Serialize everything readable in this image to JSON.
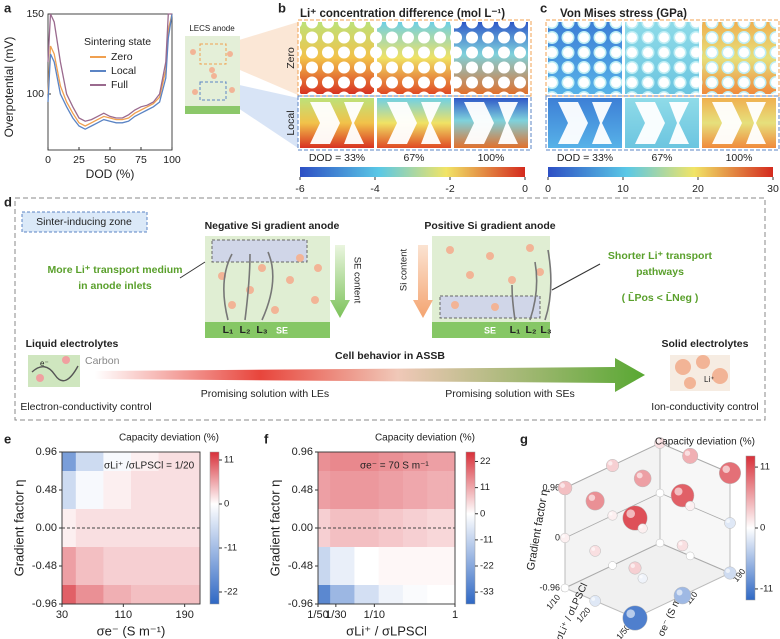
{
  "chart_data": [
    {
      "label": "a",
      "type": "line",
      "xlabel": "DOD (%)",
      "ylabel": "Overpotential (mV)",
      "legend_title": "Sintering state",
      "inset_label": "LECS anode",
      "x": [
        0,
        2,
        5,
        10,
        15,
        20,
        25,
        30,
        35,
        40,
        45,
        50,
        55,
        60,
        65,
        70,
        75,
        80,
        85,
        90,
        95,
        97,
        100
      ],
      "series": [
        {
          "name": "Zero",
          "color": "#f0a050",
          "values": [
            100,
            130,
            125,
            105,
            95,
            88,
            82,
            80,
            82,
            84,
            86,
            85,
            84,
            84,
            85,
            88,
            90,
            92,
            94,
            98,
            115,
            140,
            150
          ]
        },
        {
          "name": "Local",
          "color": "#5b84c4",
          "values": [
            95,
            125,
            120,
            100,
            92,
            85,
            80,
            78,
            80,
            82,
            84,
            83,
            82,
            82,
            83,
            86,
            88,
            90,
            92,
            95,
            110,
            135,
            150
          ]
        },
        {
          "name": "Full",
          "color": "#9a6a8e",
          "values": [
            120,
            150,
            145,
            120,
            100,
            92,
            85,
            83,
            84,
            86,
            88,
            86,
            85,
            85,
            87,
            90,
            92,
            93,
            95,
            100,
            120,
            150,
            150
          ]
        }
      ],
      "xlim": [
        0,
        100
      ],
      "xticks": [
        0,
        25,
        50,
        75,
        100
      ],
      "ylim": [
        65,
        150
      ],
      "yticks": [
        100,
        150
      ]
    },
    {
      "label": "e",
      "type": "heatmap",
      "colorbar_title": "Capacity deviation (%)",
      "annotation": "σLi⁺ /σLPSCl = 1/20",
      "xlabel": "σe⁻ (S m⁻¹)",
      "ylabel": "Gradient factor η",
      "x": [
        30,
        66,
        102,
        138,
        174,
        210
      ],
      "y": [
        0.96,
        0.48,
        0,
        -0.48,
        -0.96
      ],
      "values": [
        [
          -16,
          -6,
          -1,
          1,
          2,
          2
        ],
        [
          -6,
          -1,
          1,
          2,
          2,
          2
        ],
        [
          1,
          2,
          2,
          2,
          2,
          2
        ],
        [
          6,
          4,
          3,
          3,
          3,
          3
        ],
        [
          10,
          7,
          5,
          4,
          4,
          4
        ]
      ],
      "xlim": [
        30,
        210
      ],
      "xticks": [
        30,
        110,
        190
      ],
      "ylim": [
        -0.96,
        0.96
      ],
      "yticks": [
        0.96,
        0.48,
        {
          "value": 0,
          "label": "0.00"
        },
        -0.48,
        -0.96
      ],
      "reference_line": 0,
      "clim": [
        -25,
        13
      ],
      "cticks": [
        11,
        0,
        -11,
        -22
      ]
    },
    {
      "label": "f",
      "type": "heatmap",
      "xscale": "log",
      "colorbar_title": "Capacity deviation (%)",
      "annotation": "σe⁻ = 70 S m⁻¹",
      "xlabel": "σLi⁺ / σLPSCl",
      "ylabel": "Gradient factor η",
      "x": [
        0.02,
        0.04,
        0.08,
        0.16,
        0.32,
        0.64,
        1
      ],
      "y": [
        0.96,
        0.48,
        0,
        -0.48,
        -0.96
      ],
      "values": [
        [
          14,
          15,
          15,
          14,
          13,
          12,
          12
        ],
        [
          12,
          13,
          13,
          12,
          11,
          10,
          10
        ],
        [
          6,
          8,
          8,
          7,
          6,
          5,
          5
        ],
        [
          -10,
          -4,
          0,
          1,
          1,
          1,
          1
        ],
        [
          -30,
          -18,
          -8,
          -3,
          -1,
          0,
          0
        ]
      ],
      "xlim": [
        0.02,
        1
      ],
      "xticks": [
        {
          "value": 0.02,
          "label": "1/50"
        },
        {
          "value": 0.0333,
          "label": "1/30"
        },
        {
          "value": 0.1,
          "label": "1/10"
        },
        1
      ],
      "ylim": [
        -0.96,
        0.96
      ],
      "yticks": [
        0.96,
        0.48,
        {
          "value": 0,
          "label": "0.00"
        },
        -0.48,
        -0.96
      ],
      "reference_line": 0,
      "clim": [
        -38,
        26
      ],
      "cticks": [
        22,
        11,
        0,
        -11,
        -22,
        -33
      ]
    },
    {
      "label": "g",
      "type": "bubble3d",
      "colorbar_title": "Capacity deviation (%)",
      "ylabel": "Gradient factor η",
      "xlabel": "σLi⁺ / σLPSCl",
      "zlabel": "σe⁻ (S m⁻¹)",
      "eta": [
        0.96,
        0.96,
        0.96,
        0.96,
        0.96,
        0.96,
        0.96,
        0.96,
        0.96,
        0,
        0,
        0,
        0,
        0,
        0,
        0,
        0,
        0,
        -0.96,
        -0.96,
        -0.96,
        -0.96,
        -0.96,
        -0.96,
        -0.96,
        -0.96,
        -0.96
      ],
      "ratio": [
        0.1,
        0.1,
        0.1,
        0.05,
        0.05,
        0.05,
        0.02,
        0.02,
        0.02,
        0.1,
        0.1,
        0.1,
        0.05,
        0.05,
        0.05,
        0.02,
        0.02,
        0.02,
        0.1,
        0.1,
        0.1,
        0.05,
        0.05,
        0.05,
        0.02,
        0.02,
        0.02
      ],
      "sigma": [
        30,
        110,
        190,
        30,
        110,
        190,
        30,
        110,
        190,
        30,
        110,
        190,
        30,
        110,
        190,
        30,
        110,
        190,
        30,
        110,
        190,
        30,
        110,
        190,
        30,
        110,
        190
      ],
      "values": [
        4,
        3,
        2,
        7,
        6,
        5,
        11,
        10,
        9,
        1,
        1,
        0,
        2,
        1,
        1,
        3,
        2,
        -2,
        0,
        0,
        0,
        -2,
        -1,
        0,
        -11,
        -6,
        -3
      ],
      "ylim": [
        -0.96,
        0.96
      ],
      "yticks": [
        0.96,
        0,
        -0.96
      ],
      "xscale": "log",
      "xlim": [
        0.1,
        0.02
      ],
      "xticks": [
        {
          "value": 0.1,
          "label": "1/10"
        },
        {
          "value": 0.05,
          "label": "1/20"
        },
        {
          "value": 0.02,
          "label": "1/50"
        }
      ],
      "zlim": [
        30,
        190
      ],
      "zticks": [
        30,
        110,
        190
      ],
      "clim": [
        -13,
        13
      ],
      "cticks": [
        11,
        0,
        -11
      ]
    }
  ],
  "figure": {
    "b": {
      "label": "b",
      "title": "Li⁺ concentration difference (mol L⁻¹)",
      "rows": [
        "Zero",
        "Local"
      ],
      "columns": [
        "DOD = 33%",
        "67%",
        "100%"
      ],
      "colorbar": {
        "lim": [
          -6,
          0
        ],
        "ticks": [
          -6,
          -4,
          -2,
          0
        ]
      }
    },
    "c": {
      "label": "c",
      "title": "Von Mises stress (GPa)",
      "columns": [
        "DOD = 33%",
        "67%",
        "100%"
      ],
      "colorbar": {
        "lim": [
          0,
          30
        ],
        "ticks": [
          0,
          10,
          20,
          30
        ]
      }
    },
    "d": {
      "label": "d",
      "legend": "Sinter-inducing zone",
      "negative": {
        "title": "Negative Si gradient anode",
        "note": [
          "More Li⁺ transport medium",
          "in anode inlets"
        ],
        "axis": "SE content",
        "base": "SE",
        "paths": [
          "L₁",
          "L₂",
          "L₃"
        ]
      },
      "positive": {
        "title": "Positive Si gradient anode",
        "note": [
          "Shorter Li⁺ transport",
          "pathways"
        ],
        "relation": "( L̄Pos < L̄Neg )",
        "axis": "Si content",
        "base": "SE",
        "paths": [
          "L₁",
          "L₂",
          "L₃"
        ]
      },
      "liquid": {
        "title": "Liquid electrolytes",
        "carbon": "Carbon",
        "electron": "e⁻",
        "control": "Electron-conductivity control"
      },
      "solid": {
        "title": "Solid electrolytes",
        "ion": "Li⁺",
        "control": "Ion-conductivity control"
      },
      "arrow": {
        "title": "Cell behavior in ASSB",
        "left": "Promising solution with LEs",
        "right": "Promising solution with SEs"
      }
    }
  }
}
